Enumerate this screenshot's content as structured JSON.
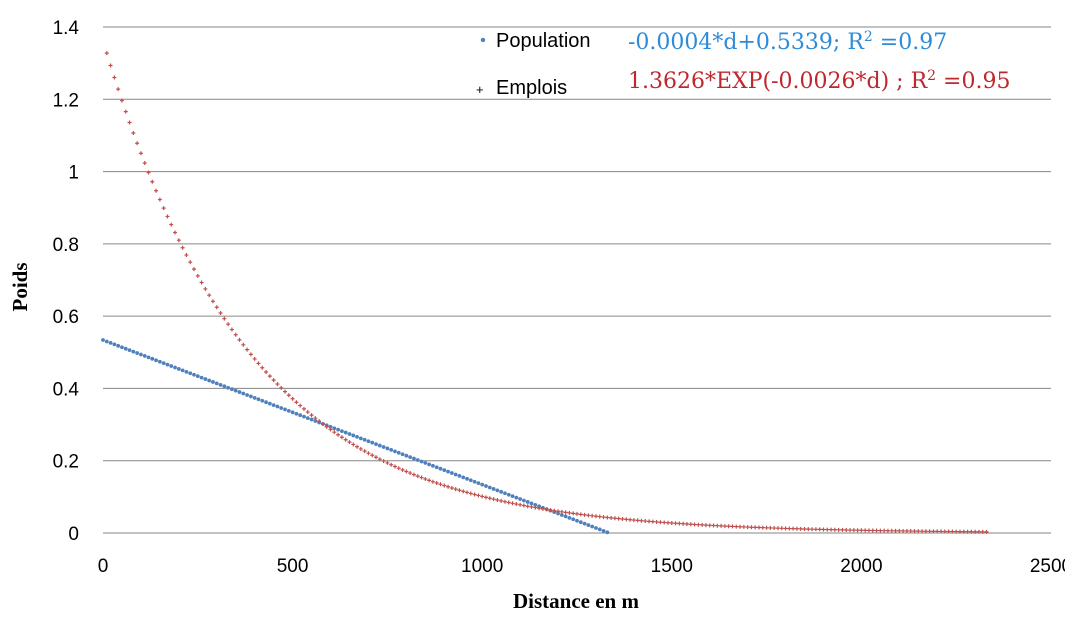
{
  "chart_data": {
    "type": "scatter",
    "xlabel": "Distance en m",
    "ylabel": "Poids",
    "xlim": [
      0,
      2500
    ],
    "ylim": [
      0,
      1.4
    ],
    "x_ticks": [
      "0",
      "500",
      "1000",
      "1500",
      "2000",
      "2500"
    ],
    "y_ticks": [
      "0",
      "0.2",
      "0.4",
      "0.6",
      "0.8",
      "1",
      "1.2",
      "1.4"
    ],
    "grid": "horizontal",
    "legend": "top-center",
    "series": [
      {
        "name": "Population",
        "color": "#4F81BD",
        "marker": "dot",
        "model": "linear",
        "slope": -0.0004,
        "intercept": 0.5339,
        "x_range": [
          0,
          1330
        ],
        "x_step": 10,
        "equation_text": "-0.0004*d+0.5339; R",
        "r2_text": " =0.97"
      },
      {
        "name": "Emplois",
        "color": "#C0504D",
        "marker": "plus",
        "model": "exponential",
        "coefficient": 1.3626,
        "rate": -0.0026,
        "x_range": [
          10,
          2330
        ],
        "x_step": 10,
        "equation_text": "1.3626*EXP(-0.0026*d) ; R",
        "r2_text": " =0.95"
      }
    ]
  }
}
